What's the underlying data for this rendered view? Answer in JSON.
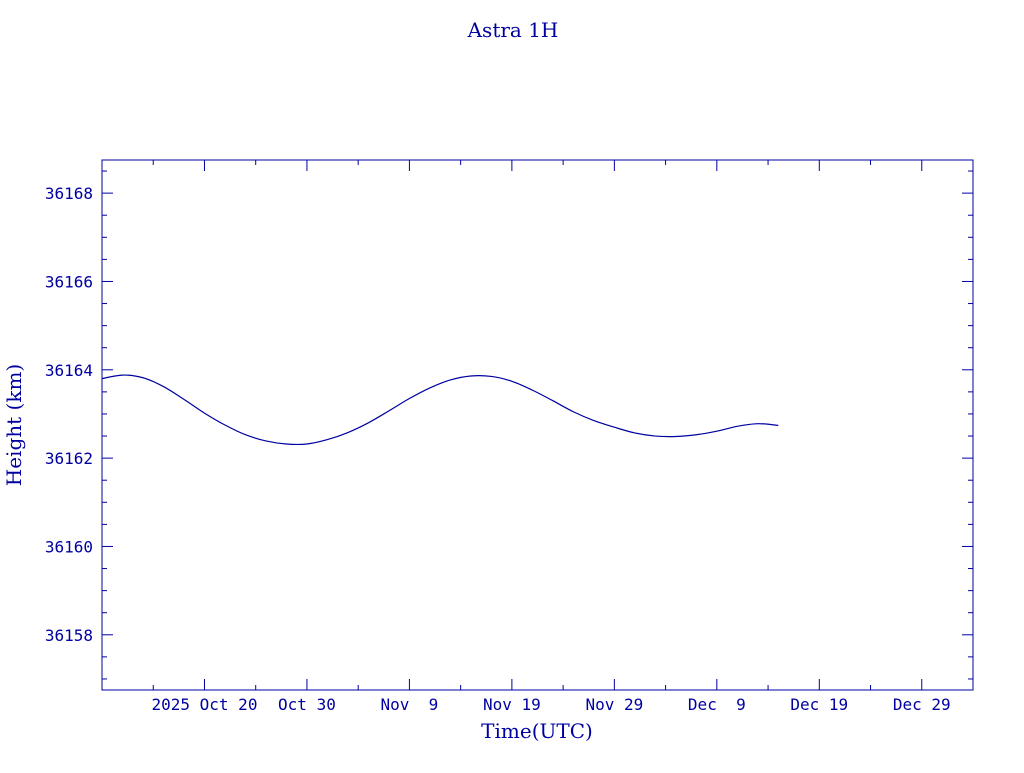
{
  "chart_data": {
    "type": "line",
    "title": "Astra 1H",
    "xlabel": "Time(UTC)",
    "ylabel": "Height (km)",
    "color": "#0000a0",
    "grid": false,
    "legend": "none",
    "xlim": [
      "2025-10-10",
      "2026-01-03"
    ],
    "ylim": [
      36156.75,
      36168.75
    ],
    "x_ticks": [
      {
        "date": "2025-10-20",
        "label": "2025 Oct 20"
      },
      {
        "date": "2025-10-30",
        "label": "Oct 30"
      },
      {
        "date": "2025-11-09",
        "label": "Nov  9"
      },
      {
        "date": "2025-11-19",
        "label": "Nov 19"
      },
      {
        "date": "2025-11-29",
        "label": "Nov 29"
      },
      {
        "date": "2025-12-09",
        "label": "Dec  9"
      },
      {
        "date": "2025-12-19",
        "label": "Dec 19"
      },
      {
        "date": "2025-12-29",
        "label": "Dec 29"
      }
    ],
    "y_ticks": [
      {
        "value": 36158,
        "label": "36158"
      },
      {
        "value": 36160,
        "label": "36160"
      },
      {
        "value": 36162,
        "label": "36162"
      },
      {
        "value": 36164,
        "label": "36164"
      },
      {
        "value": 36166,
        "label": "36166"
      },
      {
        "value": 36168,
        "label": "36168"
      }
    ],
    "series": [
      {
        "x": [
          "2025-10-10",
          "2025-10-12",
          "2025-10-14",
          "2025-10-16",
          "2025-10-18",
          "2025-10-20",
          "2025-10-22",
          "2025-10-24",
          "2025-10-26",
          "2025-10-28",
          "2025-10-30",
          "2025-11-01",
          "2025-11-03",
          "2025-11-05",
          "2025-11-07",
          "2025-11-09",
          "2025-11-11",
          "2025-11-13",
          "2025-11-15",
          "2025-11-17",
          "2025-11-19",
          "2025-11-21",
          "2025-11-23",
          "2025-11-25",
          "2025-11-27",
          "2025-11-29",
          "2025-12-01",
          "2025-12-03",
          "2025-12-05",
          "2025-12-07",
          "2025-12-09",
          "2025-12-11",
          "2025-12-13",
          "2025-12-15"
        ],
        "y": [
          36163.8,
          36163.88,
          36163.82,
          36163.62,
          36163.33,
          36163.02,
          36162.75,
          36162.53,
          36162.39,
          36162.32,
          36162.32,
          36162.42,
          36162.58,
          36162.8,
          36163.07,
          36163.35,
          36163.59,
          36163.77,
          36163.86,
          36163.85,
          36163.74,
          36163.54,
          36163.3,
          36163.05,
          36162.85,
          36162.7,
          36162.57,
          36162.5,
          36162.49,
          36162.53,
          36162.61,
          36162.72,
          36162.78,
          36162.74
        ]
      }
    ]
  }
}
